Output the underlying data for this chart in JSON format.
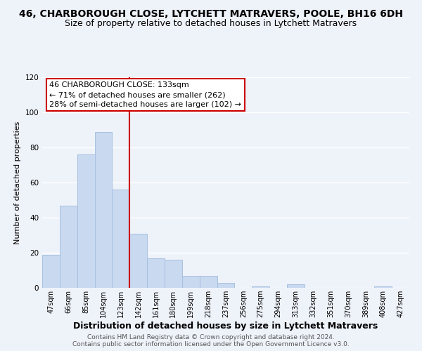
{
  "title": "46, CHARBOROUGH CLOSE, LYTCHETT MATRAVERS, POOLE, BH16 6DH",
  "subtitle": "Size of property relative to detached houses in Lytchett Matravers",
  "xlabel": "Distribution of detached houses by size in Lytchett Matravers",
  "ylabel": "Number of detached properties",
  "bar_color": "#c8d9f0",
  "bar_edge_color": "#a8c0e0",
  "categories": [
    "47sqm",
    "66sqm",
    "85sqm",
    "104sqm",
    "123sqm",
    "142sqm",
    "161sqm",
    "180sqm",
    "199sqm",
    "218sqm",
    "237sqm",
    "256sqm",
    "275sqm",
    "294sqm",
    "313sqm",
    "332sqm",
    "351sqm",
    "370sqm",
    "389sqm",
    "408sqm",
    "427sqm"
  ],
  "values": [
    19,
    47,
    76,
    89,
    56,
    31,
    17,
    16,
    7,
    7,
    3,
    0,
    1,
    0,
    2,
    0,
    0,
    0,
    0,
    1,
    0
  ],
  "ylim": [
    0,
    120
  ],
  "yticks": [
    0,
    20,
    40,
    60,
    80,
    100,
    120
  ],
  "vline_x": 4.5,
  "vline_color": "#cc0000",
  "annotation_title": "46 CHARBOROUGH CLOSE: 133sqm",
  "annotation_line1": "← 71% of detached houses are smaller (262)",
  "annotation_line2": "28% of semi-detached houses are larger (102) →",
  "footer1": "Contains HM Land Registry data © Crown copyright and database right 2024.",
  "footer2": "Contains public sector information licensed under the Open Government Licence v3.0.",
  "background_color": "#eef2f9",
  "grid_color": "#ffffff",
  "title_fontsize": 10,
  "subtitle_fontsize": 9,
  "ylabel_fontsize": 8,
  "xlabel_fontsize": 9,
  "tick_fontsize": 7,
  "footer_fontsize": 6.5,
  "annotation_fontsize": 8
}
